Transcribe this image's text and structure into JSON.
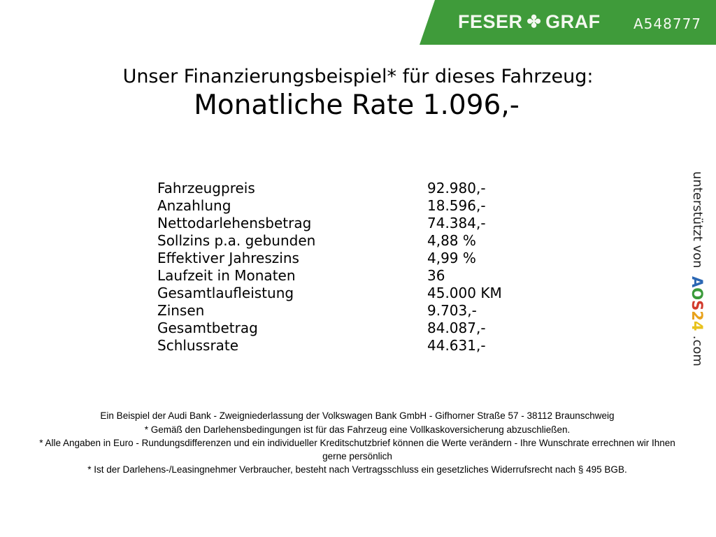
{
  "header": {
    "brand": "FESER GRAF",
    "brand_left": "FESER",
    "brand_right": "GRAF",
    "brand_icon": "clover-icon",
    "vehicle_code": "A548777",
    "brand_color": "#3f9b3a"
  },
  "title": "Unser Finanzierungsbeispiel* für dieses Fahrzeug:",
  "monthly_rate": "Monatliche Rate 1.096,-",
  "rows": [
    {
      "label": "Fahrzeugpreis",
      "value": "92.980,-"
    },
    {
      "label": "Anzahlung",
      "value": "18.596,-"
    },
    {
      "label": "Nettodarlehensbetrag",
      "value": "74.384,-"
    },
    {
      "label": "Sollzins p.a. gebunden",
      "value": "4,88 %"
    },
    {
      "label": "Effektiver Jahreszins",
      "value": "4,99 %"
    },
    {
      "label": "Laufzeit in Monaten",
      "value": "36"
    },
    {
      "label": "Gesamtlaufleistung",
      "value": "45.000 KM"
    },
    {
      "label": "Zinsen",
      "value": "9.703,-"
    },
    {
      "label": "Gesamtbetrag",
      "value": "84.087,-"
    },
    {
      "label": "Schlussrate",
      "value": "44.631,-"
    }
  ],
  "side": {
    "prefix": "unterstützt von",
    "a": "A",
    "o": "O",
    "s": "S",
    "two": "2",
    "four": "4",
    "suffix": ".com"
  },
  "footer": [
    "Ein Beispiel der Audi Bank - Zweigniederlassung der Volkswagen Bank GmbH - Gifhorner Straße 57 - 38112 Braunschweig",
    "* Gemäß den Darlehensbedingungen ist für das Fahrzeug eine Vollkaskoversicherung abzuschließen.",
    "* Alle Angaben in Euro - Rundungsdifferenzen und ein individueller Kreditschutzbrief können die Werte verändern - Ihre Wunschrate errechnen wir Ihnen gerne persönlich",
    "* Ist der Darlehens-/Leasingnehmer Verbraucher, besteht nach Vertragsschluss ein gesetzliches Widerrufsrecht nach § 495 BGB."
  ]
}
